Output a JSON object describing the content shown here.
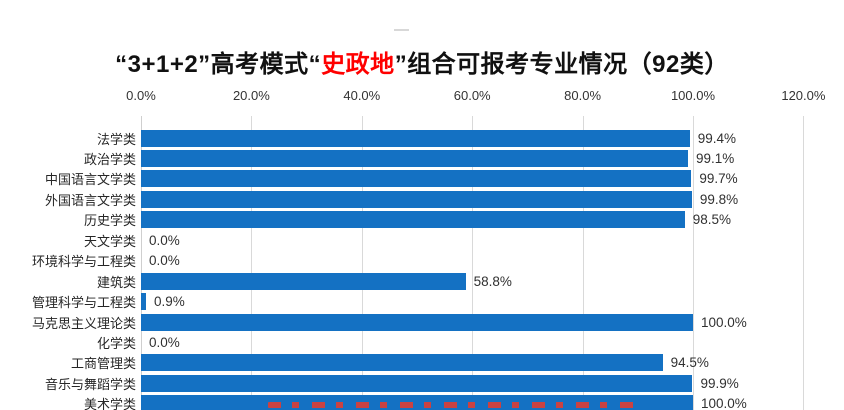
{
  "title": {
    "prefix": "“3+1+2”高考模式“",
    "highlight": "史政地",
    "suffix": "”组合可报考专业情况（92类）",
    "highlight_color": "#ff0000"
  },
  "chart_data": {
    "type": "bar",
    "orientation": "horizontal",
    "title": "“3+1+2”高考模式“史政地”组合可报考专业情况（92类）",
    "categories": [
      "法学类",
      "政治学类",
      "中国语言文学类",
      "外国语言文学类",
      "历史学类",
      "天文学类",
      "环境科学与工程类",
      "建筑类",
      "管理科学与工程类",
      "马克思主义理论类",
      "化学类",
      "工商管理类",
      "音乐与舞蹈学类",
      "美术学类"
    ],
    "values": [
      99.4,
      99.1,
      99.7,
      99.8,
      98.5,
      0.0,
      0.0,
      58.8,
      0.9,
      100.0,
      0.0,
      94.5,
      99.9,
      100.0
    ],
    "value_labels": [
      "99.4%",
      "99.1%",
      "99.7%",
      "99.8%",
      "98.5%",
      "0.0%",
      "0.0%",
      "58.8%",
      "0.9%",
      "100.0%",
      "0.0%",
      "94.5%",
      "99.9%",
      "100.0%"
    ],
    "x_ticks": [
      "0.0%",
      "20.0%",
      "40.0%",
      "60.0%",
      "80.0%",
      "100.0%",
      "120.0%"
    ],
    "xlim": [
      0,
      120
    ],
    "grid": true,
    "legend": "none",
    "bar_color": "#1471c3",
    "gridline_color": "#d9d9d9",
    "last_row_clipped_at_bottom": true,
    "clipped_red_watermark_present": true
  }
}
